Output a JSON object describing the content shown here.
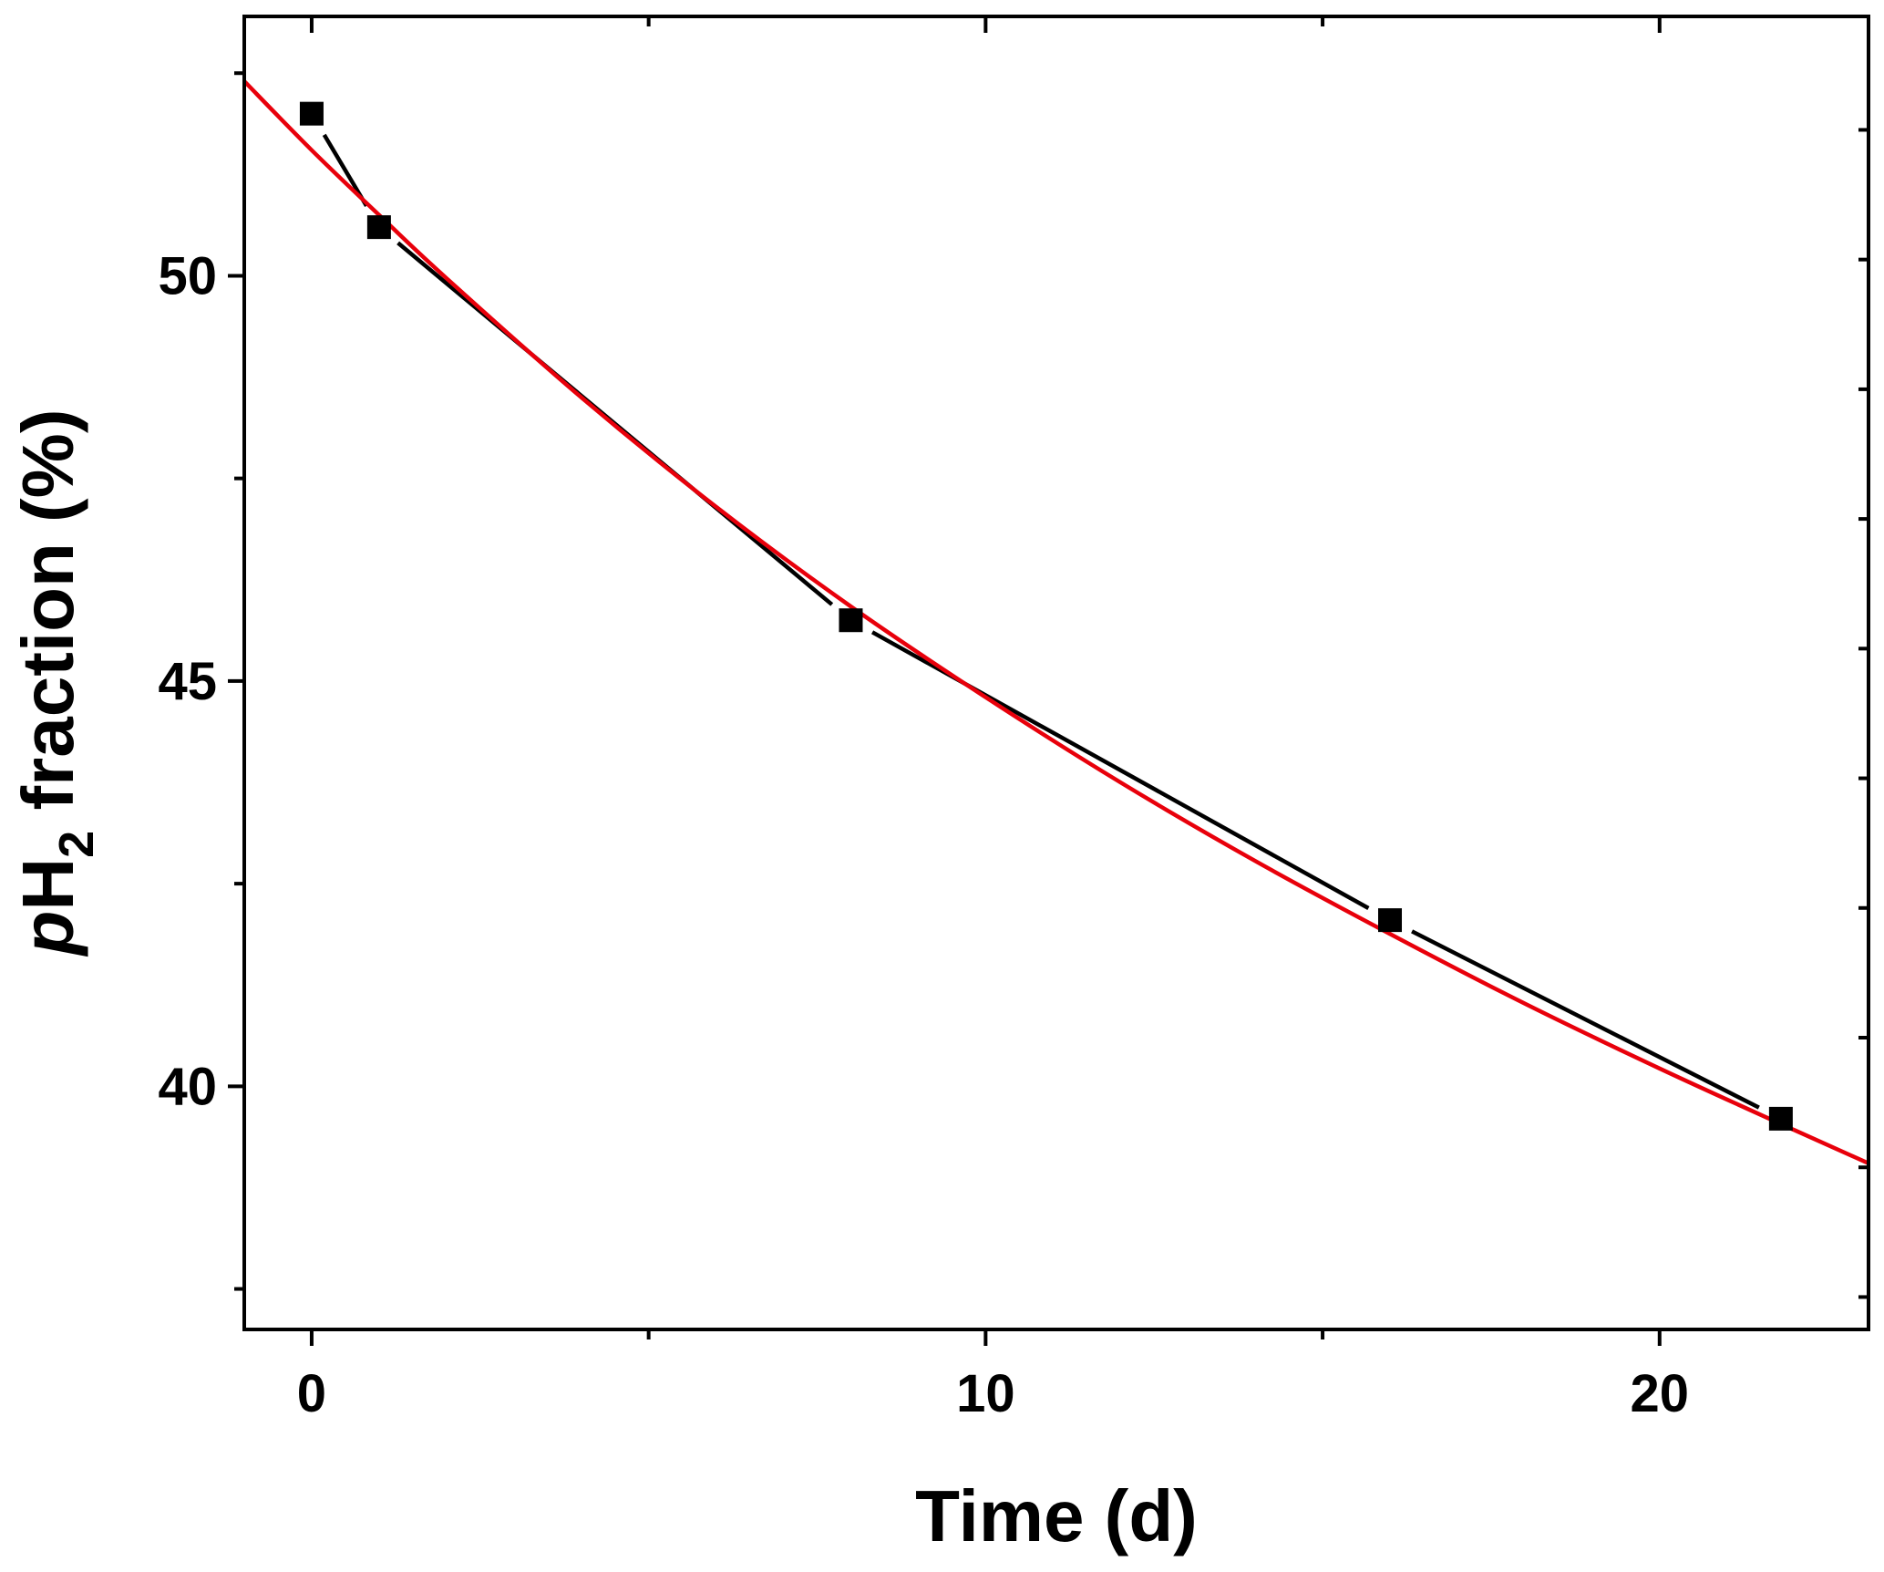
{
  "chart_data": {
    "type": "line",
    "xlabel": "Time (d)",
    "ylabel_prefix": "p",
    "ylabel_main": "H",
    "ylabel_sub": "2",
    "ylabel_suffix": " fraction (%)",
    "xlim": [
      -1,
      23.1
    ],
    "ylim": [
      37,
      53.2
    ],
    "x_ticks": [
      0,
      10,
      20
    ],
    "x_tick_labels": [
      "0",
      "10",
      "20"
    ],
    "x_minor_ticks": [
      5,
      15
    ],
    "y_ticks": [
      40,
      45,
      50
    ],
    "y_tick_labels": [
      "40",
      "45",
      "50"
    ],
    "y_minor_ticks": [
      37.5,
      42.5,
      47.5,
      52.5
    ],
    "y_right_ticks": [
      37.4,
      39,
      40.6,
      42.2,
      43.8,
      45.4,
      47,
      48.6,
      50.2,
      51.8
    ],
    "grid": false,
    "legend": "none",
    "series": [
      {
        "kind": "measured",
        "marker": "square",
        "color": "#000000",
        "x": [
          0,
          1,
          8,
          16,
          21.8
        ],
        "y": [
          52.0,
          50.6,
          45.75,
          42.05,
          39.6
        ]
      },
      {
        "kind": "fit",
        "color": "#e8000b",
        "x": [
          -1,
          0,
          1,
          2,
          4,
          6,
          8,
          10,
          12,
          14,
          16,
          18,
          20,
          22,
          23.1
        ],
        "y": [
          52.4,
          51.55,
          50.75,
          49.97,
          48.5,
          47.15,
          45.92,
          44.8,
          43.75,
          42.78,
          41.88,
          41.02,
          40.22,
          39.46,
          39.05
        ]
      }
    ]
  }
}
